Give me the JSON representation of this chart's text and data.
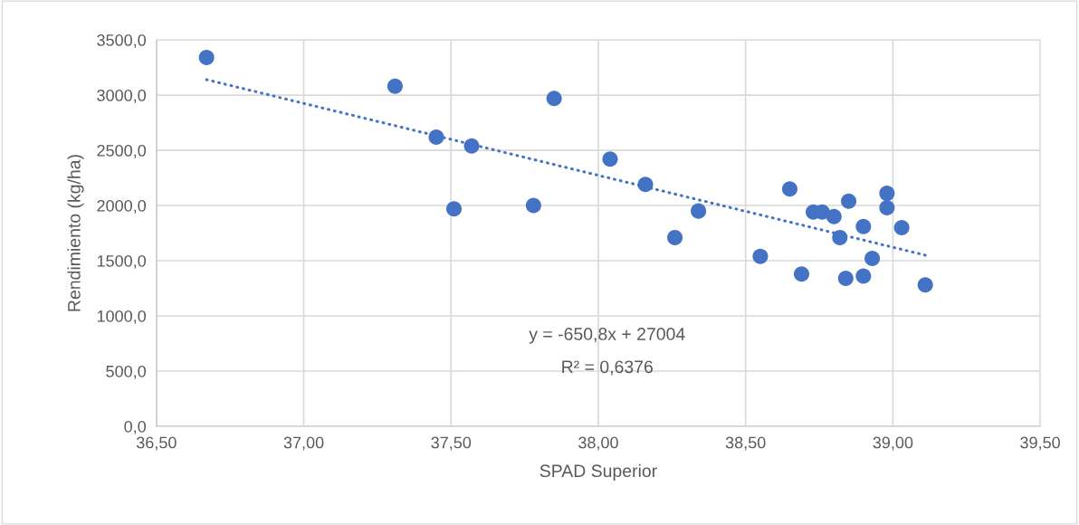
{
  "chart_data": {
    "type": "scatter",
    "xlabel": "SPAD Superior",
    "ylabel": "Rendimiento (kg/ha)",
    "xlim": [
      36.5,
      39.5
    ],
    "xticks": [
      {
        "value": 36.5,
        "label": "36,50"
      },
      {
        "value": 37.0,
        "label": "37,00"
      },
      {
        "value": 37.5,
        "label": "37,50"
      },
      {
        "value": 38.0,
        "label": "38,00"
      },
      {
        "value": 38.5,
        "label": "38,50"
      },
      {
        "value": 39.0,
        "label": "39,00"
      },
      {
        "value": 39.5,
        "label": "39,50"
      }
    ],
    "ylim": [
      0,
      3500
    ],
    "yticks": [
      {
        "value": 0,
        "label": "0,0"
      },
      {
        "value": 500,
        "label": "500,0"
      },
      {
        "value": 1000,
        "label": "1000,0"
      },
      {
        "value": 1500,
        "label": "1500,0"
      },
      {
        "value": 2000,
        "label": "2000,0"
      },
      {
        "value": 2500,
        "label": "2500,0"
      },
      {
        "value": 3000,
        "label": "3000,0"
      },
      {
        "value": 3500,
        "label": "3500,0"
      }
    ],
    "grid": true,
    "marker": "circle",
    "series": [
      {
        "color": "#4472c4",
        "x": [
          36.67,
          37.31,
          37.85,
          37.45,
          37.57,
          37.51,
          37.78,
          38.04,
          38.16,
          38.34,
          38.26,
          38.55,
          38.65,
          38.73,
          38.76,
          38.69,
          38.8,
          38.85,
          38.82,
          38.9,
          38.84,
          38.9,
          38.93,
          38.98,
          38.98,
          39.03,
          39.11
        ],
        "values": [
          3340,
          3080,
          2970,
          2620,
          2540,
          1970,
          2000,
          2420,
          2190,
          1950,
          1710,
          1540,
          2150,
          1940,
          1940,
          1380,
          1900,
          2040,
          1710,
          1810,
          1340,
          1360,
          1520,
          2110,
          1980,
          1800,
          1280
        ]
      },
      {
        "type": "line",
        "color": "#4472c4",
        "line_style": "dotted",
        "marker": "none",
        "x": [
          36.67,
          39.11
        ],
        "values": [
          3140,
          1550
        ]
      }
    ],
    "annotations": [
      "y = -650,8x + 27004",
      "R² = 0,6376"
    ]
  }
}
